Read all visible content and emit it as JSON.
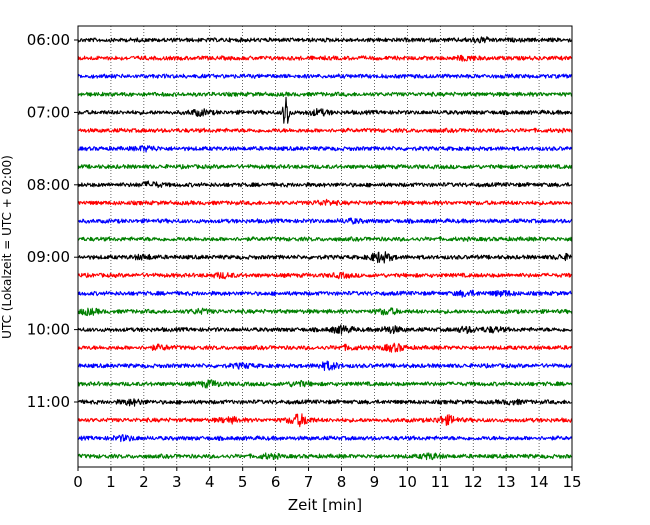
{
  "chart_data": {
    "type": "line",
    "title": "",
    "xlabel": "Zeit  [min]",
    "ylabel": "UTC (Lokalzeit = UTC + 02:00)",
    "xlim": [
      0,
      15
    ],
    "x_ticks": [
      "0",
      "1",
      "2",
      "3",
      "4",
      "5",
      "6",
      "7",
      "8",
      "9",
      "10",
      "11",
      "12",
      "13",
      "14",
      "15"
    ],
    "y_tick_labels": [
      "06:00",
      "07:00",
      "08:00",
      "09:00",
      "10:00",
      "11:00"
    ],
    "grid": "vertical dotted",
    "trace_colors": [
      "#000000",
      "#ff0000",
      "#0000ff",
      "#008000"
    ],
    "traces": [
      {
        "start": "06:00",
        "color": "#000000",
        "events": [
          [
            12.2,
            0.8
          ]
        ]
      },
      {
        "start": "06:15",
        "color": "#ff0000",
        "events": [
          [
            11.8,
            0.7
          ]
        ]
      },
      {
        "start": "06:30",
        "color": "#0000ff",
        "events": []
      },
      {
        "start": "06:45",
        "color": "#008000",
        "events": []
      },
      {
        "start": "07:00",
        "color": "#000000",
        "events": [
          [
            6.32,
            8.5
          ],
          [
            3.7,
            1.0
          ],
          [
            7.3,
            1.0
          ]
        ]
      },
      {
        "start": "07:15",
        "color": "#ff0000",
        "events": []
      },
      {
        "start": "07:30",
        "color": "#0000ff",
        "events": [
          [
            2.1,
            0.8
          ]
        ]
      },
      {
        "start": "07:45",
        "color": "#008000",
        "events": []
      },
      {
        "start": "08:00",
        "color": "#000000",
        "events": [
          [
            2.2,
            0.9
          ]
        ]
      },
      {
        "start": "08:15",
        "color": "#ff0000",
        "events": [
          [
            7.5,
            0.8
          ]
        ]
      },
      {
        "start": "08:30",
        "color": "#0000ff",
        "events": [
          [
            8.3,
            0.6
          ]
        ]
      },
      {
        "start": "08:45",
        "color": "#008000",
        "events": []
      },
      {
        "start": "09:00",
        "color": "#000000",
        "events": [
          [
            9.2,
            2.0
          ],
          [
            2.0,
            0.7
          ],
          [
            14.8,
            0.8
          ]
        ]
      },
      {
        "start": "09:15",
        "color": "#ff0000",
        "events": [
          [
            4.4,
            0.8
          ],
          [
            8.0,
            0.6
          ]
        ]
      },
      {
        "start": "09:30",
        "color": "#0000ff",
        "events": [
          [
            11.8,
            0.9
          ],
          [
            12.9,
            0.8
          ]
        ]
      },
      {
        "start": "09:45",
        "color": "#008000",
        "events": [
          [
            0.3,
            1.0
          ],
          [
            9.4,
            1.0
          ],
          [
            3.7,
            0.7
          ]
        ]
      },
      {
        "start": "10:00",
        "color": "#000000",
        "events": [
          [
            8.0,
            1.3
          ],
          [
            9.5,
            1.1
          ],
          [
            11.8,
            0.9
          ],
          [
            12.6,
            0.8
          ]
        ]
      },
      {
        "start": "10:15",
        "color": "#ff0000",
        "events": [
          [
            9.6,
            1.3
          ],
          [
            2.5,
            0.7
          ],
          [
            8.2,
            0.6
          ]
        ]
      },
      {
        "start": "10:30",
        "color": "#0000ff",
        "events": [
          [
            7.6,
            1.4
          ],
          [
            5.0,
            0.7
          ]
        ]
      },
      {
        "start": "10:45",
        "color": "#008000",
        "events": [
          [
            4.0,
            1.1
          ],
          [
            6.7,
            0.8
          ]
        ]
      },
      {
        "start": "11:00",
        "color": "#000000",
        "events": [
          [
            1.65,
            1.0
          ],
          [
            13.2,
            0.6
          ]
        ]
      },
      {
        "start": "11:15",
        "color": "#ff0000",
        "events": [
          [
            6.72,
            2.2
          ],
          [
            11.2,
            1.6
          ],
          [
            4.6,
            0.9
          ]
        ]
      },
      {
        "start": "11:30",
        "color": "#0000ff",
        "events": [
          [
            1.4,
            0.8
          ]
        ]
      },
      {
        "start": "11:45",
        "color": "#008000",
        "events": [
          [
            10.7,
            0.9
          ],
          [
            5.8,
            0.7
          ]
        ]
      }
    ]
  }
}
